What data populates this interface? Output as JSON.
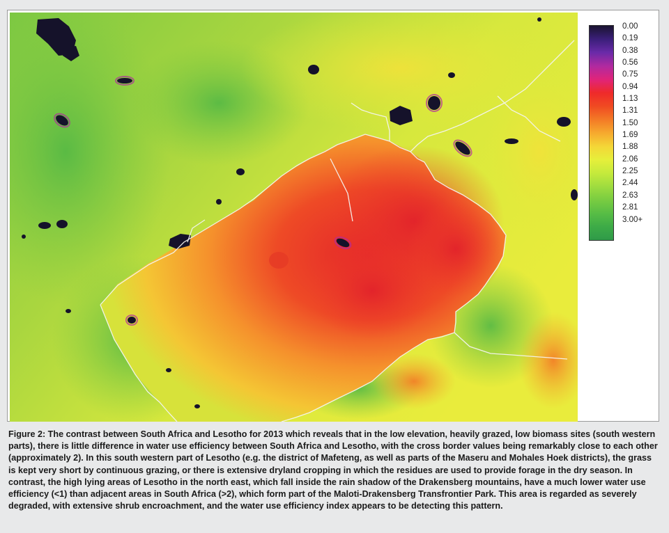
{
  "legend": {
    "labels": [
      "0.00",
      "0.19",
      "0.38",
      "0.56",
      "0.75",
      "0.94",
      "1.13",
      "1.31",
      "1.50",
      "1.69",
      "1.88",
      "2.06",
      "2.25",
      "2.44",
      "2.63",
      "2.81",
      "3.00+"
    ],
    "colors": [
      "#1a1430",
      "#3b1f7a",
      "#6a2aa8",
      "#b02aa0",
      "#e0247a",
      "#ef2a2a",
      "#f04a22",
      "#f37a26",
      "#f6a92e",
      "#f4d637",
      "#e6ef3b",
      "#c5ea3c",
      "#9fdc3f",
      "#79cc41",
      "#58bd45",
      "#3dab47",
      "#2f9a48"
    ]
  },
  "caption": "Figure 2: The contrast between South Africa and Lesotho for 2013 which reveals that in the low elevation, heavily grazed, low biomass sites (south western parts), there is little difference in water use efficiency between South Africa and Lesotho, with the cross border values being remarkably close to each other (approximately 2). In this south western part of Lesotho (e.g. the district of Mafeteng, as well as parts of the Maseru and Mohales Hoek districts), the grass is kept very short by continuous grazing, or there is extensive dryland cropping in which the residues are used to provide forage in the dry season. In contrast, the high lying areas of Lesotho in the north east, which fall inside the rain shadow of the Drakensberg mountains, have a much lower water use efficiency (<1) than adjacent areas in South Africa (>2), which form part of the Maloti-Drakensberg Transfrontier Park. This area is regarded as severely degraded, with extensive shrub encroachment, and the water use efficiency index appears to be detecting this pattern."
}
